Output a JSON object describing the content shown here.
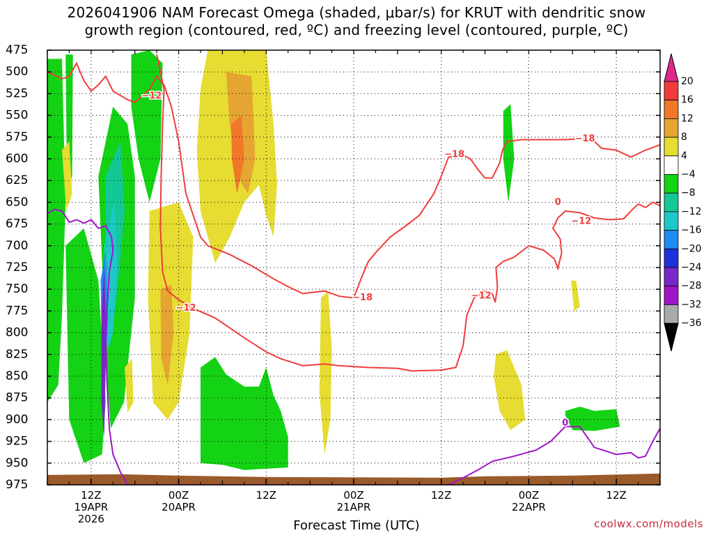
{
  "title": {
    "line1": "2026041906 NAM Forecast Omega (shaded, μbar/s) for KRUT with dendritic snow",
    "line2": "growth region (contoured, red, ºC) and freezing level (contoured, purple, ºC)"
  },
  "credit": "coolwx.com/models",
  "chart_data": {
    "type": "heatmap",
    "xlabel": "Forecast Time (UTC)",
    "x_ticks": [
      {
        "hour": 6,
        "line1": "12Z",
        "line2": "19APR",
        "line3": "2026"
      },
      {
        "hour": 18,
        "line1": "00Z",
        "line2": "20APR",
        "line3": ""
      },
      {
        "hour": 30,
        "line1": "12Z",
        "line2": "",
        "line3": ""
      },
      {
        "hour": 42,
        "line1": "00Z",
        "line2": "21APR",
        "line3": ""
      },
      {
        "hour": 54,
        "line1": "12Z",
        "line2": "",
        "line3": ""
      },
      {
        "hour": 66,
        "line1": "00Z",
        "line2": "22APR",
        "line3": ""
      },
      {
        "hour": 78,
        "line1": "12Z",
        "line2": "",
        "line3": ""
      }
    ],
    "xlim_hours": [
      0,
      84
    ],
    "y_ticks": [
      "475",
      "500",
      "525",
      "550",
      "575",
      "600",
      "625",
      "650",
      "675",
      "700",
      "725",
      "750",
      "775",
      "800",
      "825",
      "850",
      "875",
      "900",
      "925",
      "950",
      "975"
    ],
    "ylim_hpa": [
      475,
      975
    ],
    "grid": true,
    "colorbar": {
      "labels": [
        "20",
        "16",
        "12",
        "8",
        "4",
        "−4",
        "−8",
        "−12",
        "−16",
        "−20",
        "−24",
        "−28",
        "−32",
        "−36"
      ],
      "colors": [
        "#e0288c",
        "#f03c3c",
        "#f07828",
        "#e6a532",
        "#e6dc32",
        "#ffffff",
        "#14d214",
        "#14c896",
        "#1ec8c8",
        "#1e8cf0",
        "#1e32dc",
        "#7828c8",
        "#a014c8",
        "#aaaaaa",
        "#000000"
      ]
    },
    "contour_labels_red": [
      {
        "text": "−12",
        "hour": 14.3,
        "hpa": 528
      },
      {
        "text": "−12",
        "hour": 19.0,
        "hpa": 772
      },
      {
        "text": "−18",
        "hour": 43.2,
        "hpa": 760
      },
      {
        "text": "−18",
        "hour": 55.8,
        "hpa": 595
      },
      {
        "text": "−12",
        "hour": 59.5,
        "hpa": 758
      },
      {
        "text": "−18",
        "hour": 73.7,
        "hpa": 577
      },
      {
        "text": "−12",
        "hour": 73.2,
        "hpa": 672
      },
      {
        "text": "0",
        "hour": 70.0,
        "hpa": 650
      }
    ],
    "contour_labels_purple": [
      {
        "text": "0",
        "hour": 71.0,
        "hpa": 904
      }
    ],
    "contour_dsgz_upper": [
      [
        0,
        500
      ],
      [
        2,
        508
      ],
      [
        3,
        505
      ],
      [
        4,
        490
      ],
      [
        5,
        510
      ],
      [
        6,
        522
      ],
      [
        7,
        515
      ],
      [
        8,
        505
      ],
      [
        9,
        522
      ],
      [
        10,
        527
      ],
      [
        11,
        532
      ],
      [
        12,
        535
      ],
      [
        13,
        528
      ],
      [
        14,
        520
      ],
      [
        15,
        505
      ],
      [
        16,
        515
      ],
      [
        17,
        540
      ],
      [
        18,
        580
      ],
      [
        19,
        640
      ],
      [
        20,
        665
      ],
      [
        21,
        690
      ],
      [
        22,
        700
      ],
      [
        25,
        710
      ],
      [
        28,
        723
      ],
      [
        31,
        738
      ],
      [
        33,
        747
      ],
      [
        35,
        755
      ],
      [
        38,
        752
      ],
      [
        40,
        758
      ],
      [
        42,
        760
      ],
      [
        43,
        738
      ],
      [
        44,
        718
      ],
      [
        45,
        708
      ],
      [
        47,
        690
      ],
      [
        49,
        678
      ],
      [
        51,
        665
      ],
      [
        53,
        640
      ],
      [
        54,
        620
      ],
      [
        55,
        598
      ],
      [
        57,
        596
      ],
      [
        58,
        600
      ],
      [
        59,
        612
      ],
      [
        60,
        622
      ],
      [
        61,
        622
      ],
      [
        62,
        605
      ],
      [
        62.4,
        590
      ],
      [
        63,
        580
      ],
      [
        65,
        578
      ],
      [
        68,
        578
      ],
      [
        71,
        578
      ],
      [
        73,
        577
      ],
      [
        75,
        580
      ],
      [
        76,
        588
      ],
      [
        78,
        590
      ],
      [
        80,
        598
      ],
      [
        82,
        590
      ],
      [
        84,
        584
      ]
    ],
    "contour_dsgz_lower": [
      [
        15,
        480
      ],
      [
        16,
        520
      ],
      [
        15.8,
        560
      ],
      [
        15.6,
        620
      ],
      [
        15.5,
        680
      ],
      [
        15.8,
        730
      ],
      [
        16.5,
        752
      ],
      [
        18,
        762
      ],
      [
        20,
        772
      ],
      [
        23,
        783
      ],
      [
        27,
        806
      ],
      [
        30,
        822
      ],
      [
        32,
        830
      ],
      [
        35,
        838
      ],
      [
        38,
        836
      ],
      [
        40,
        838
      ],
      [
        44,
        840
      ],
      [
        48,
        841
      ],
      [
        50,
        844
      ],
      [
        54,
        843
      ],
      [
        56,
        840
      ],
      [
        57,
        815
      ],
      [
        57.5,
        780
      ],
      [
        58.5,
        760
      ],
      [
        60,
        752
      ],
      [
        61,
        755
      ],
      [
        61.4,
        765
      ],
      [
        61.7,
        748
      ],
      [
        61.5,
        725
      ],
      [
        62.5,
        718
      ],
      [
        64,
        713
      ],
      [
        66,
        700
      ],
      [
        68,
        705
      ],
      [
        69.5,
        715
      ],
      [
        70,
        726
      ],
      [
        70.5,
        708
      ],
      [
        70.3,
        692
      ],
      [
        69.3,
        680
      ],
      [
        70,
        668
      ],
      [
        71,
        660
      ],
      [
        73,
        662
      ],
      [
        75,
        668
      ],
      [
        77,
        670
      ],
      [
        79,
        669
      ],
      [
        80,
        660
      ],
      [
        81,
        652
      ],
      [
        82,
        656
      ],
      [
        83,
        650
      ],
      [
        84,
        654
      ]
    ],
    "contour_freezing": [
      [
        0,
        663
      ],
      [
        1,
        658
      ],
      [
        2,
        660
      ],
      [
        3,
        673
      ],
      [
        4,
        670
      ],
      [
        5,
        674
      ],
      [
        6,
        670
      ],
      [
        7,
        680
      ],
      [
        8,
        677
      ],
      [
        8.8,
        690
      ],
      [
        9,
        705
      ],
      [
        8.5,
        730
      ],
      [
        8.2,
        770
      ],
      [
        8,
        810
      ],
      [
        8.2,
        860
      ],
      [
        8.5,
        910
      ],
      [
        9,
        940
      ],
      [
        10,
        960
      ],
      [
        11,
        975
      ],
      [
        55,
        975
      ],
      [
        57,
        967
      ],
      [
        59,
        958
      ],
      [
        61,
        948
      ],
      [
        64,
        942
      ],
      [
        67,
        935
      ],
      [
        69,
        925
      ],
      [
        71,
        908
      ],
      [
        73,
        908
      ],
      [
        75,
        932
      ],
      [
        78,
        940
      ],
      [
        80,
        938
      ],
      [
        81,
        944
      ],
      [
        82,
        942
      ],
      [
        83,
        925
      ],
      [
        84,
        910
      ]
    ],
    "terrain_hpa": 962,
    "omega_shading": [
      {
        "color": "#14d214",
        "pts": [
          [
            0,
            485
          ],
          [
            2,
            485
          ],
          [
            2.5,
            650
          ],
          [
            2,
            780
          ],
          [
            1.5,
            860
          ],
          [
            0,
            880
          ]
        ]
      },
      {
        "color": "#14d214",
        "pts": [
          [
            2.5,
            700
          ],
          [
            5,
            680
          ],
          [
            7,
            740
          ],
          [
            8,
            880
          ],
          [
            7.5,
            940
          ],
          [
            5,
            950
          ],
          [
            3,
            900
          ]
        ]
      },
      {
        "color": "#14d214",
        "pts": [
          [
            7,
            620
          ],
          [
            9,
            540
          ],
          [
            11,
            560
          ],
          [
            12,
            620
          ],
          [
            12,
            760
          ],
          [
            10.5,
            880
          ],
          [
            8.7,
            910
          ],
          [
            8,
            830
          ],
          [
            7.5,
            720
          ]
        ]
      },
      {
        "color": "#14c896",
        "pts": [
          [
            8,
            620
          ],
          [
            10,
            580
          ],
          [
            10.6,
            660
          ],
          [
            9.5,
            760
          ],
          [
            8.5,
            820
          ],
          [
            8,
            760
          ]
        ]
      },
      {
        "color": "#1ec8c8",
        "pts": [
          [
            7.8,
            700
          ],
          [
            9.2,
            650
          ],
          [
            9.6,
            720
          ],
          [
            9,
            800
          ],
          [
            8.2,
            820
          ]
        ]
      },
      {
        "color": "#1e8cf0",
        "pts": [
          [
            7.3,
            740
          ],
          [
            8,
            705
          ],
          [
            8.3,
            780
          ],
          [
            7.9,
            860
          ],
          [
            7.5,
            840
          ]
        ]
      },
      {
        "color": "#7828c8",
        "pts": [
          [
            7.4,
            780
          ],
          [
            7.8,
            725
          ],
          [
            8.1,
            800
          ],
          [
            7.8,
            920
          ],
          [
            7.4,
            880
          ]
        ]
      },
      {
        "color": "#14d214",
        "pts": [
          [
            11.5,
            480
          ],
          [
            14,
            475
          ],
          [
            15.8,
            490
          ],
          [
            15.5,
            600
          ],
          [
            14,
            650
          ],
          [
            12.5,
            600
          ],
          [
            11.5,
            540
          ]
        ]
      },
      {
        "color": "#14d214",
        "pts": [
          [
            2.5,
            480
          ],
          [
            3.5,
            480
          ],
          [
            3.4,
            620
          ],
          [
            2.7,
            640
          ]
        ]
      },
      {
        "color": "#14d214",
        "pts": [
          [
            21,
            840
          ],
          [
            23,
            828
          ],
          [
            24.5,
            848
          ],
          [
            27,
            862
          ],
          [
            29,
            862
          ],
          [
            30,
            840
          ],
          [
            31,
            872
          ],
          [
            32,
            890
          ],
          [
            33,
            920
          ],
          [
            33,
            955
          ],
          [
            27,
            958
          ],
          [
            24,
            952
          ],
          [
            21,
            950
          ]
        ]
      },
      {
        "color": "#14d214",
        "pts": [
          [
            62.5,
            545
          ],
          [
            63.5,
            537
          ],
          [
            64,
            600
          ],
          [
            63.2,
            650
          ],
          [
            62.5,
            600
          ]
        ]
      },
      {
        "color": "#14d214",
        "pts": [
          [
            71,
            890
          ],
          [
            73,
            885
          ],
          [
            75,
            890
          ],
          [
            78,
            888
          ],
          [
            78.5,
            908
          ],
          [
            75,
            913
          ],
          [
            72,
            912
          ],
          [
            71,
            895
          ]
        ]
      },
      {
        "color": "#e6dc32",
        "pts": [
          [
            22,
            475
          ],
          [
            30,
            475
          ],
          [
            31,
            560
          ],
          [
            31.5,
            630
          ],
          [
            31,
            690
          ],
          [
            30,
            665
          ],
          [
            29,
            630
          ],
          [
            27,
            650
          ],
          [
            25,
            690
          ],
          [
            23,
            720
          ],
          [
            21,
            660
          ],
          [
            20.5,
            590
          ],
          [
            21,
            520
          ]
        ]
      },
      {
        "color": "#e6a532",
        "pts": [
          [
            24.5,
            500
          ],
          [
            28,
            505
          ],
          [
            28.5,
            600
          ],
          [
            27.5,
            640
          ],
          [
            26,
            620
          ],
          [
            25,
            560
          ]
        ]
      },
      {
        "color": "#f07828",
        "pts": [
          [
            25.2,
            560
          ],
          [
            26.6,
            550
          ],
          [
            27,
            600
          ],
          [
            26,
            640
          ],
          [
            25.3,
            600
          ]
        ]
      },
      {
        "color": "#e6dc32",
        "pts": [
          [
            14,
            660
          ],
          [
            18,
            650
          ],
          [
            20,
            690
          ],
          [
            19.5,
            800
          ],
          [
            18,
            880
          ],
          [
            16.5,
            900
          ],
          [
            14.5,
            880
          ],
          [
            13.8,
            760
          ]
        ]
      },
      {
        "color": "#e6a532",
        "pts": [
          [
            15.5,
            750
          ],
          [
            17,
            745
          ],
          [
            17.3,
            800
          ],
          [
            16.5,
            860
          ],
          [
            15.6,
            830
          ]
        ]
      },
      {
        "color": "#e6dc32",
        "pts": [
          [
            37.5,
            760
          ],
          [
            38.5,
            752
          ],
          [
            39,
            820
          ],
          [
            38.8,
            900
          ],
          [
            38,
            940
          ],
          [
            37.3,
            870
          ]
        ]
      },
      {
        "color": "#e6dc32",
        "pts": [
          [
            61.5,
            825
          ],
          [
            63,
            820
          ],
          [
            65,
            860
          ],
          [
            65.5,
            900
          ],
          [
            63.5,
            912
          ],
          [
            62,
            890
          ],
          [
            61.2,
            850
          ]
        ]
      },
      {
        "color": "#e6dc32",
        "pts": [
          [
            71.8,
            740
          ],
          [
            72.5,
            740
          ],
          [
            73,
            770
          ],
          [
            72.2,
            775
          ]
        ]
      },
      {
        "color": "#e6dc32",
        "pts": [
          [
            2,
            590
          ],
          [
            3,
            580
          ],
          [
            3.4,
            640
          ],
          [
            2.6,
            660
          ]
        ]
      },
      {
        "color": "#e6dc32",
        "pts": [
          [
            10.6,
            840
          ],
          [
            11.6,
            830
          ],
          [
            11.8,
            880
          ],
          [
            11,
            892
          ]
        ]
      }
    ]
  }
}
